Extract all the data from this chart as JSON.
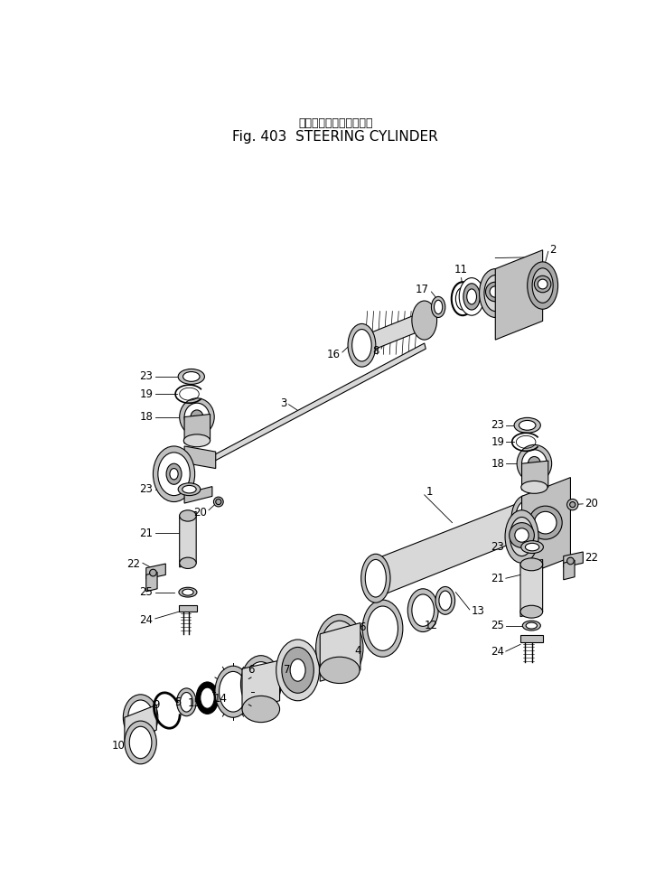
{
  "title_jp": "ステアリング　シリンダ",
  "title_en": "Fig. 403  STEERING CYLINDER",
  "bg": "#ffffff",
  "lc": "#000000",
  "figsize": [
    7.25,
    9.72
  ],
  "dpi": 100
}
